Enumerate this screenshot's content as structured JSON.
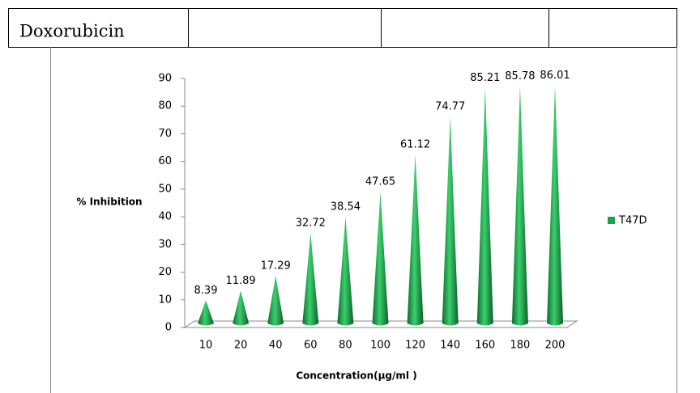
{
  "table": {
    "rows": [
      [
        "Doxorubicin"
      ]
    ]
  },
  "chart_data": {
    "type": "cone-bar",
    "categories": [
      "10",
      "20",
      "40",
      "60",
      "80",
      "100",
      "120",
      "140",
      "160",
      "180",
      "200"
    ],
    "series": [
      {
        "name": "T47D",
        "color": "#1aa34a",
        "values": [
          8.39,
          11.89,
          17.29,
          32.72,
          38.54,
          47.65,
          61.12,
          74.77,
          85.21,
          85.78,
          86.01
        ]
      }
    ],
    "ylim": [
      0,
      90
    ],
    "yticks": [
      0,
      10,
      20,
      30,
      40,
      50,
      60,
      70,
      80,
      90
    ],
    "y_label": "% Inhibition",
    "x_label": "Concentration(µg/ml )",
    "legend": "right"
  }
}
